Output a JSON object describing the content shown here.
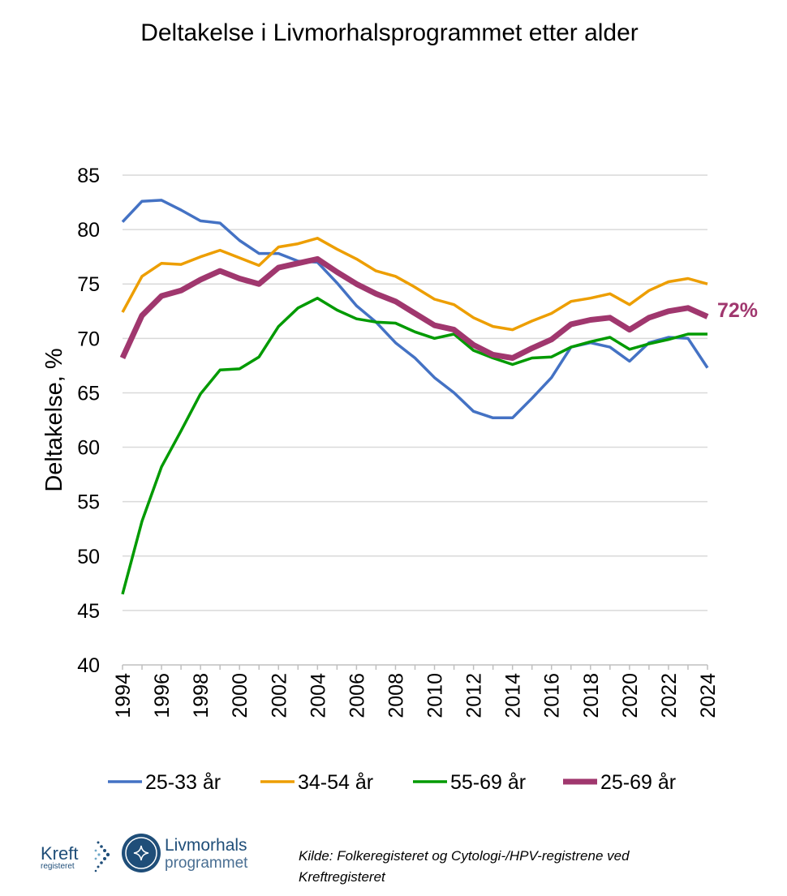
{
  "chart_data": {
    "type": "line",
    "title": "Deltakelse i Livmorhalsprogrammet etter alder",
    "xlabel": "",
    "ylabel": "Deltakelse, %",
    "ylim": [
      40,
      85
    ],
    "yticks": [
      40,
      45,
      50,
      55,
      60,
      65,
      70,
      75,
      80,
      85
    ],
    "xlim": [
      1994,
      2024
    ],
    "xticks": [
      1994,
      1996,
      1998,
      2000,
      2002,
      2004,
      2006,
      2008,
      2010,
      2012,
      2014,
      2016,
      2018,
      2020,
      2022,
      2024
    ],
    "grid": true,
    "legend_position": "bottom",
    "x": [
      1994,
      1995,
      1996,
      1997,
      1998,
      1999,
      2000,
      2001,
      2002,
      2003,
      2004,
      2005,
      2006,
      2007,
      2008,
      2009,
      2010,
      2011,
      2012,
      2013,
      2014,
      2015,
      2016,
      2017,
      2018,
      2019,
      2020,
      2021,
      2022,
      2023,
      2024
    ],
    "series": [
      {
        "name": "25-33 år",
        "color": "#4472C4",
        "values": [
          80.7,
          82.6,
          82.7,
          81.8,
          80.8,
          80.6,
          79.0,
          77.8,
          77.8,
          77.1,
          77.0,
          75.1,
          73.0,
          71.5,
          69.6,
          68.2,
          66.4,
          65.0,
          63.3,
          62.7,
          62.7,
          64.5,
          66.4,
          69.2,
          69.6,
          69.2,
          67.9,
          69.6,
          70.1,
          70.0,
          67.3
        ]
      },
      {
        "name": "34-54 år",
        "color": "#ED9E00",
        "values": [
          72.4,
          75.7,
          76.9,
          76.8,
          77.5,
          78.1,
          77.4,
          76.7,
          78.4,
          78.7,
          79.2,
          78.2,
          77.3,
          76.2,
          75.7,
          74.7,
          73.6,
          73.1,
          71.9,
          71.1,
          70.8,
          71.6,
          72.3,
          73.4,
          73.7,
          74.1,
          73.1,
          74.4,
          75.2,
          75.5,
          75.0
        ]
      },
      {
        "name": "55-69 år",
        "color": "#009A00",
        "values": [
          46.5,
          53.2,
          58.2,
          61.5,
          64.9,
          67.1,
          67.2,
          68.3,
          71.1,
          72.8,
          73.7,
          72.6,
          71.8,
          71.5,
          71.4,
          70.6,
          70.0,
          70.4,
          68.9,
          68.2,
          67.6,
          68.2,
          68.3,
          69.2,
          69.7,
          70.1,
          69.0,
          69.5,
          69.9,
          70.4,
          70.4
        ]
      },
      {
        "name": "25-69 år",
        "color": "#A0376E",
        "values": [
          68.2,
          72.1,
          73.9,
          74.4,
          75.4,
          76.2,
          75.5,
          75.0,
          76.5,
          76.9,
          77.3,
          76.1,
          75.0,
          74.1,
          73.4,
          72.3,
          71.2,
          70.8,
          69.4,
          68.5,
          68.2,
          69.1,
          69.9,
          71.3,
          71.7,
          71.9,
          70.8,
          71.9,
          72.5,
          72.8,
          72.0
        ],
        "thick": true
      }
    ],
    "annotations": [
      {
        "text": "72%",
        "series": "25-69 år",
        "x": 2024
      }
    ]
  },
  "source": "Kilde: Folkeregisteret og Cytologi-/HPV-registrene ved Kreftregisteret",
  "logos": {
    "kreftregisteret": {
      "line1": "Kreft",
      "line2": "registeret"
    },
    "livmorhals": {
      "line1": "Livmorhals",
      "line2": "programmet"
    }
  }
}
